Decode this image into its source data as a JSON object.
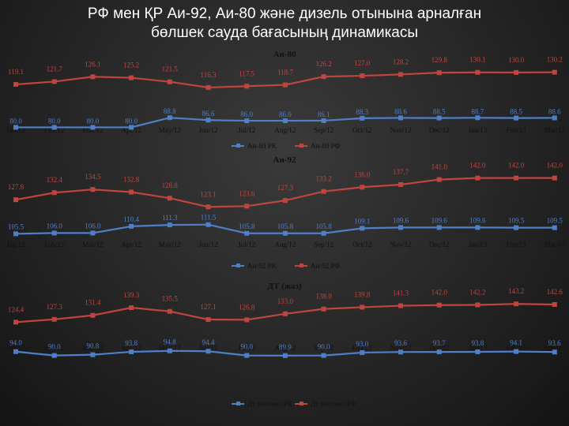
{
  "page_title_line1": "РФ мен ҚР Аи-92, Аи-80 және дизель отынына арналған",
  "page_title_line2": "бөлшек сауда бағасының динамикасы",
  "colors": {
    "kz_series": "#4f7fc9",
    "rf_series": "#c0453f",
    "text": "#111111"
  },
  "chart_data": [
    {
      "type": "line",
      "title": "Аи-80",
      "categories": [
        "Jan/12",
        "Feb/12",
        "Mar/12",
        "Apr/12",
        "May/12",
        "Jun/12",
        "Jul/12",
        "Aug/12",
        "Sep/12",
        "Oct/12",
        "Nov/12",
        "Dec/12",
        "Jan/13",
        "Feb/13",
        "Mar/13"
      ],
      "series": [
        {
          "name": "Аи-80 РК",
          "values": [
            80.0,
            80.0,
            80.0,
            80.0,
            88.8,
            86.6,
            86.0,
            86.0,
            86.1,
            88.3,
            88.6,
            88.5,
            88.7,
            88.5,
            88.6
          ]
        },
        {
          "name": "Аи-80 РФ",
          "values": [
            119.1,
            121.7,
            126.1,
            125.2,
            121.5,
            116.3,
            117.5,
            118.7,
            126.2,
            127.0,
            128.2,
            129.8,
            130.1,
            130.0,
            130.2
          ]
        }
      ]
    },
    {
      "type": "line",
      "title": "Аи-92",
      "categories": [
        "Jan/12",
        "Feb/12",
        "Mar/12",
        "Apr/12",
        "May/12",
        "Jun/12",
        "Jul/12",
        "Aug/12",
        "Sep/12",
        "Oct/12",
        "Nov/12",
        "Dec/12",
        "Jan/13",
        "Feb/13",
        "Mar/13"
      ],
      "series": [
        {
          "name": "Аи-92 РК",
          "values": [
            105.5,
            106.0,
            106.0,
            110.4,
            111.3,
            111.5,
            105.8,
            105.8,
            105.8,
            109.1,
            109.6,
            109.6,
            109.6,
            109.5,
            109.5
          ]
        },
        {
          "name": "Аи-92 РФ",
          "values": [
            127.8,
            132.4,
            134.5,
            132.8,
            128.8,
            123.1,
            123.6,
            127.3,
            133.2,
            136.0,
            137.7,
            141.0,
            142.0,
            142.0,
            142.0
          ]
        }
      ]
    },
    {
      "type": "line",
      "title": "ДТ (жаз)",
      "categories": [
        "Jan/12",
        "Feb/12",
        "Mar/12",
        "Apr/12",
        "May/12",
        "Jun/12",
        "Jul/12",
        "Aug/12",
        "Sep/12",
        "Oct/12",
        "Nov/12",
        "Dec/12",
        "Jan/13",
        "Feb/13",
        "Mar/13"
      ],
      "series": [
        {
          "name": "Дт (летнее) РК",
          "values": [
            94.0,
            90.0,
            90.8,
            93.8,
            94.8,
            94.4,
            90.0,
            89.9,
            90.0,
            93.0,
            93.6,
            93.7,
            93.8,
            94.1,
            93.6
          ]
        },
        {
          "name": "Дт (летнее) РФ",
          "values": [
            124.4,
            127.3,
            131.4,
            139.3,
            135.5,
            127.1,
            126.8,
            133.0,
            138.0,
            139.8,
            141.3,
            142.0,
            142.2,
            143.2,
            142.6
          ]
        }
      ]
    }
  ]
}
